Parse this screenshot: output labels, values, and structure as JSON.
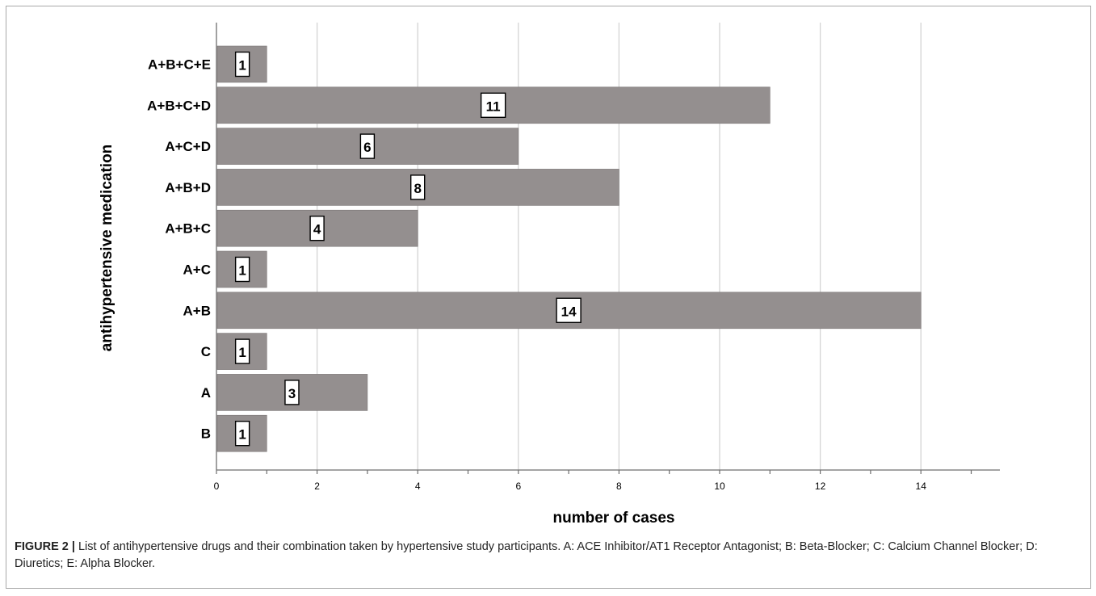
{
  "chart_data": {
    "type": "bar",
    "orientation": "horizontal",
    "categories": [
      "A+B+C+E",
      "A+B+C+D",
      "A+C+D",
      "A+B+D",
      "A+B+C",
      "A+C",
      "A+B",
      "C",
      "A",
      "B"
    ],
    "values": [
      1,
      11,
      6,
      8,
      4,
      1,
      14,
      1,
      3,
      1
    ],
    "data_labels": [
      "1",
      "11",
      "6",
      "8",
      "4",
      "1",
      "14",
      "1",
      "3",
      "1"
    ],
    "xlabel": "number of cases",
    "ylabel": "antihypertensive medication",
    "xlim": [
      0,
      15.6
    ],
    "xticks": [
      0,
      2,
      4,
      6,
      8,
      10,
      12,
      14
    ],
    "xtick_labels": [
      "0",
      "2",
      "4",
      "6",
      "8",
      "10",
      "12",
      "14"
    ],
    "grid": "vertical",
    "bar_color": "#948f8f",
    "grid_color": "#d4d4d4"
  },
  "caption": {
    "lead": "FIGURE 2 |",
    "text": " List of antihypertensive drugs and their combination taken by hypertensive study participants. A: ACE Inhibitor/AT1 Receptor Antagonist; B: Beta-Blocker; C: Calcium Channel Blocker; D: Diuretics; E: Alpha Blocker."
  }
}
